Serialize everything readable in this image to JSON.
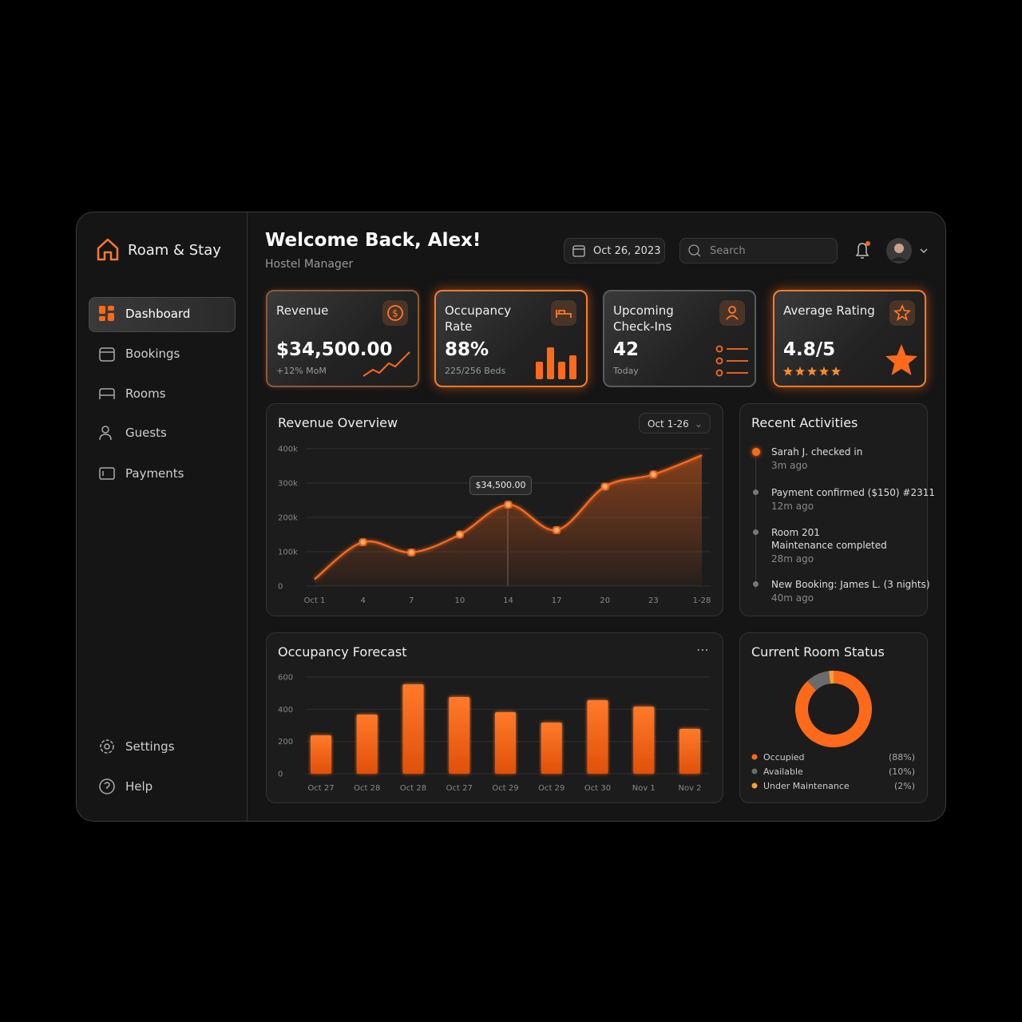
{
  "brand": "Roam & Stay",
  "nav": [
    "Dashboard",
    "Bookings",
    "Rooms",
    "Guests",
    "Payments"
  ],
  "nav_bottom": [
    "Settings",
    "Help"
  ],
  "header": {
    "title": "Welcome Back, Alex!",
    "subtitle": "Hostel Manager",
    "date": "Oct 26, 2023",
    "search": "Search"
  },
  "cards": [
    {
      "title": "Revenue",
      "value": "$34,500.00",
      "sub": "+12% MoM"
    },
    {
      "title": "Occupancy Rate",
      "value": "88%",
      "sub": "225/256 Beds"
    },
    {
      "title": "Upcoming Check-Ins",
      "value": "42",
      "sub": "Today"
    },
    {
      "title": "Average Rating",
      "value": "4.8/5"
    }
  ],
  "activities": {
    "title": "Recent Activities",
    "items": [
      {
        "text": "Sarah J. checked in",
        "time": "3m ago"
      },
      {
        "text": "Payment confirmed ($150) #2311",
        "time": "12m ago"
      },
      {
        "text": "Room 201\nMaintenance completed",
        "time": "28m ago"
      },
      {
        "text": "New Booking: James L. (3 nights)",
        "time": "40m ago"
      }
    ]
  },
  "chart_data": [
    {
      "type": "line",
      "title": "Revenue Overview",
      "range_label": "Oct 1-26",
      "annotation": "$34,500.00",
      "categories": [
        "Oct 1",
        "4",
        "7",
        "10",
        "14",
        "17",
        "20",
        "23",
        "1-28"
      ],
      "values": [
        20,
        128,
        98,
        150,
        237,
        163,
        290,
        325,
        381
      ],
      "color": "#ff6a1a",
      "ylim": [
        0,
        400
      ],
      "yticks": [
        0,
        {
          "value": 100,
          "label": "100k"
        },
        {
          "value": 200,
          "label": "200k"
        },
        {
          "value": 300,
          "label": "300k"
        },
        {
          "value": 400,
          "label": "400k"
        }
      ],
      "grid": true
    },
    {
      "type": "bar",
      "title": "Occupancy Forecast",
      "categories": [
        "Oct 27",
        "Oct 28",
        "Oct 28",
        "Oct 27",
        "Oct 29",
        "Oct 29",
        "Oct 30",
        "Nov 1",
        "Nov 2"
      ],
      "values": [
        238,
        367,
        555,
        476,
        382,
        317,
        456,
        416,
        278
      ],
      "color": "#ff6a1a",
      "ylim": [
        0,
        600
      ],
      "yticks": [
        0,
        200,
        400,
        600
      ],
      "grid": true
    },
    {
      "type": "pie",
      "title": "Current Room Status",
      "categories": [
        "Occupied",
        "Available",
        "Under Maintenance"
      ],
      "values": [
        88,
        10,
        2
      ],
      "value_labels": [
        "(88%)",
        "(10%)",
        "(2%)"
      ],
      "colors": [
        "#ff6a1a",
        "#6b6b6b",
        "#f5a03a"
      ]
    }
  ]
}
